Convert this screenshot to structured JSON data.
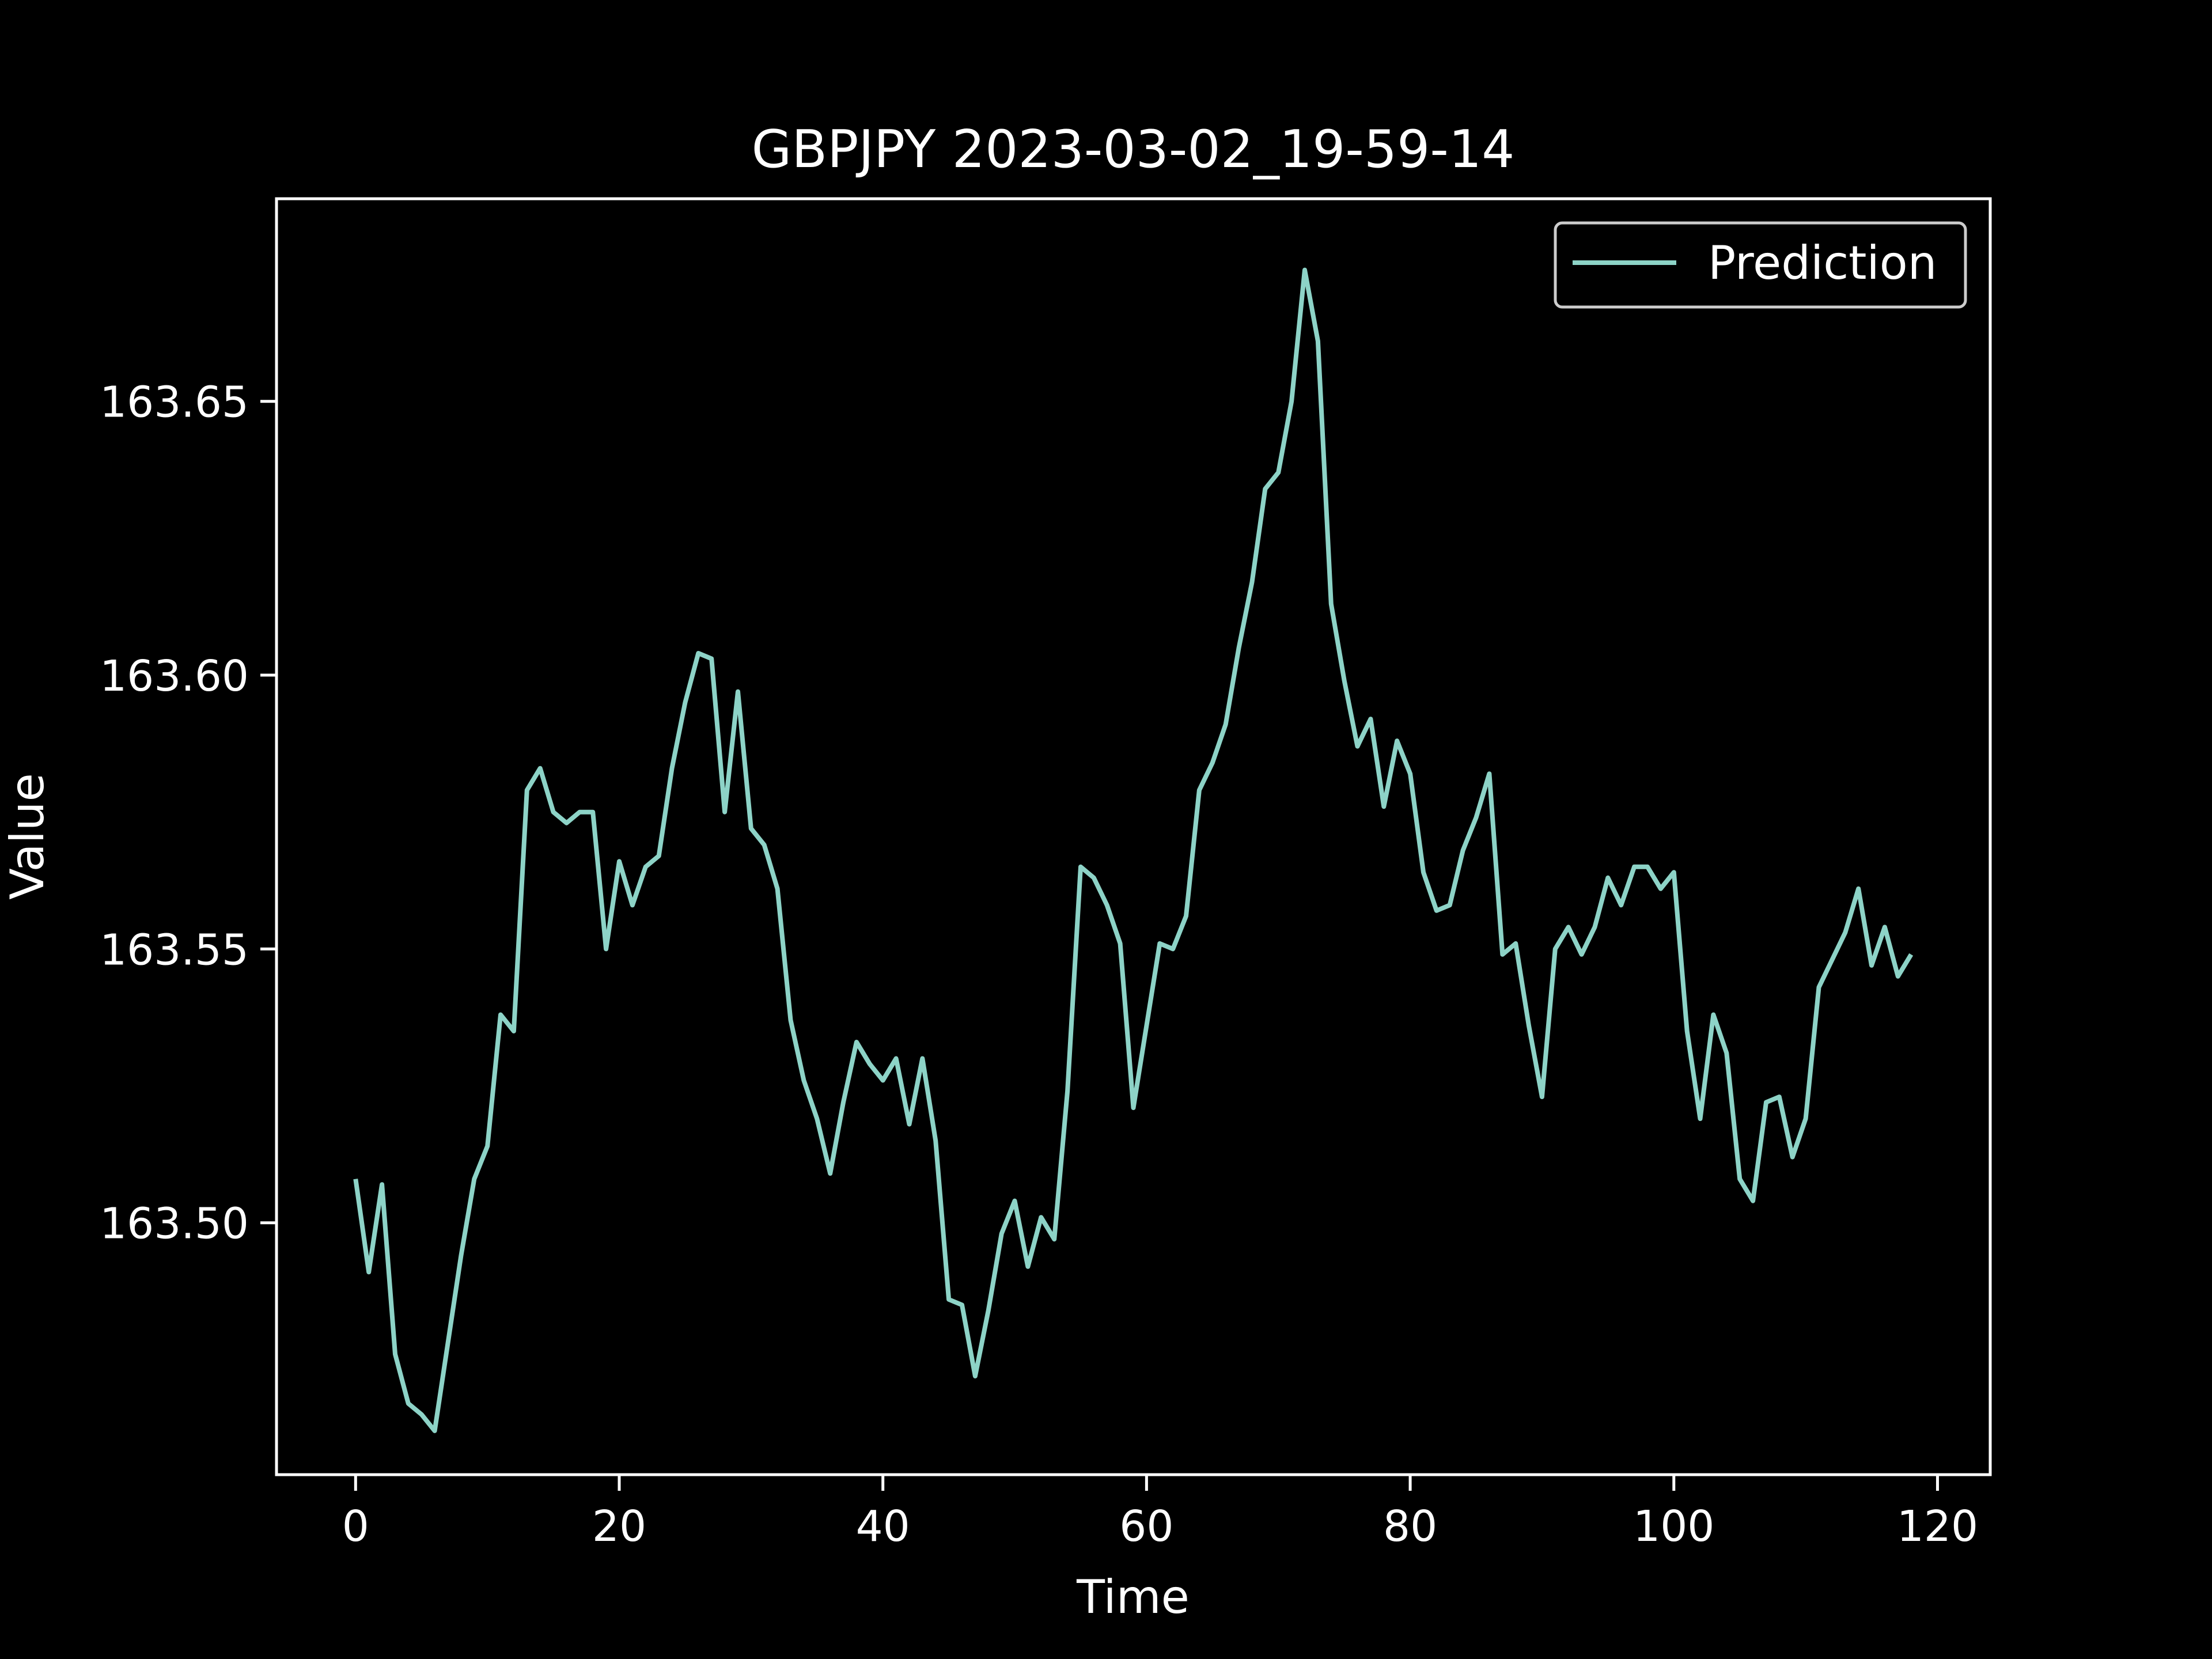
{
  "colors": {
    "background": "#000000",
    "foreground": "#ffffff",
    "series": "#8dd3c7",
    "legend_border": "#cccccc"
  },
  "chart_data": {
    "type": "line",
    "title": "GBPJPY 2023-03-02_19-59-14",
    "xlabel": "Time",
    "ylabel": "Value",
    "xlim": [
      -6,
      124
    ],
    "ylim": [
      163.454,
      163.687
    ],
    "xticks": [
      0,
      20,
      40,
      60,
      80,
      100,
      120
    ],
    "xtick_labels": [
      "0",
      "20",
      "40",
      "60",
      "80",
      "100",
      "120"
    ],
    "yticks": [
      163.5,
      163.55,
      163.6,
      163.65
    ],
    "ytick_labels": [
      "163.50",
      "163.55",
      "163.60",
      "163.65"
    ],
    "grid": false,
    "legend": "top-right",
    "series": [
      {
        "name": "Prediction",
        "color": "#8dd3c7",
        "x_start": 0,
        "x_step": 1,
        "values": [
          163.508,
          163.491,
          163.507,
          163.476,
          163.467,
          163.465,
          163.462,
          163.478,
          163.494,
          163.508,
          163.514,
          163.538,
          163.535,
          163.579,
          163.583,
          163.575,
          163.573,
          163.575,
          163.575,
          163.55,
          163.566,
          163.558,
          163.565,
          163.567,
          163.583,
          163.595,
          163.604,
          163.603,
          163.575,
          163.597,
          163.572,
          163.569,
          163.561,
          163.537,
          163.526,
          163.519,
          163.509,
          163.522,
          163.533,
          163.529,
          163.526,
          163.53,
          163.518,
          163.53,
          163.515,
          163.486,
          163.485,
          163.472,
          163.484,
          163.498,
          163.504,
          163.492,
          163.501,
          163.497,
          163.524,
          163.565,
          163.563,
          163.558,
          163.551,
          163.521,
          163.536,
          163.551,
          163.55,
          163.556,
          163.579,
          163.584,
          163.591,
          163.605,
          163.617,
          163.634,
          163.637,
          163.65,
          163.674,
          163.661,
          163.613,
          163.599,
          163.587,
          163.592,
          163.576,
          163.588,
          163.582,
          163.564,
          163.557,
          163.558,
          163.568,
          163.574,
          163.582,
          163.549,
          163.551,
          163.536,
          163.523,
          163.55,
          163.554,
          163.549,
          163.554,
          163.563,
          163.558,
          163.565,
          163.565,
          163.561,
          163.564,
          163.535,
          163.519,
          163.538,
          163.531,
          163.508,
          163.504,
          163.522,
          163.523,
          163.512,
          163.519,
          163.543,
          163.548,
          163.553,
          163.561,
          163.547,
          163.554,
          163.545,
          163.549
        ]
      }
    ]
  }
}
